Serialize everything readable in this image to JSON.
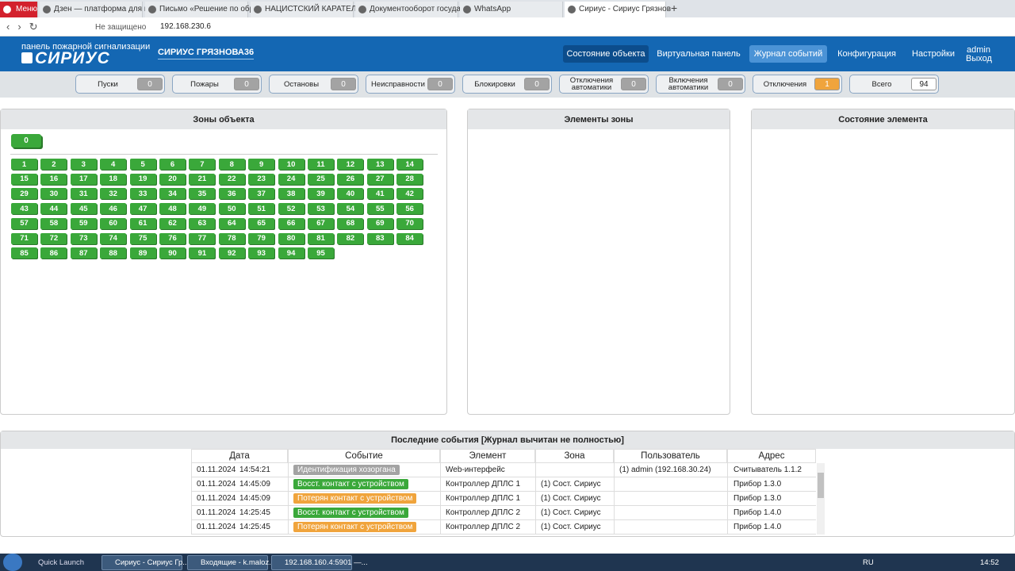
{
  "browser": {
    "tabs": [
      "Меню",
      "Дзен — платформа для п",
      "Письмо «Решение по обр",
      "НАЦИСТСКИЙ КАРАТЕЛЬ",
      "Документооборот государ",
      "WhatsApp",
      "Сириус - Сириус Грязнов"
    ],
    "active_tab": 6,
    "security": "Не защищено",
    "address": "192.168.230.6"
  },
  "header": {
    "subtitle": "панель пожарной сигнализации",
    "logo": "СИРИУС",
    "object": "СИРИУС ГРЯЗНОВА36",
    "nav": [
      "Состояние объекта",
      "Виртуальная панель",
      "Журнал событий",
      "Конфигурация",
      "Настройки"
    ],
    "nav_active": 0,
    "nav_hover": 2,
    "user": "admin",
    "logout": "Выход"
  },
  "counters": [
    {
      "label": "Пуски",
      "value": 0,
      "color": "#a3a3a3"
    },
    {
      "label": "Пожары",
      "value": 0,
      "color": "#a3a3a3"
    },
    {
      "label": "Остановы",
      "value": 0,
      "color": "#a3a3a3"
    },
    {
      "label": "Неисправности",
      "value": 0,
      "color": "#a3a3a3"
    },
    {
      "label": "Блокировки",
      "value": 0,
      "color": "#a3a3a3"
    },
    {
      "label": "Отключения автоматики",
      "value": 0,
      "color": "#a3a3a3"
    },
    {
      "label": "Включения автоматики",
      "value": 0,
      "color": "#a3a3a3"
    },
    {
      "label": "Отключения",
      "value": 1,
      "color": "#f0a43c"
    },
    {
      "label": "Всего",
      "value": 94,
      "color": "#ffffff"
    }
  ],
  "zones": {
    "title": "Зоны объекта",
    "group": "0",
    "items": [
      1,
      2,
      3,
      4,
      5,
      6,
      7,
      8,
      9,
      10,
      11,
      12,
      13,
      14,
      15,
      16,
      17,
      18,
      19,
      20,
      21,
      22,
      23,
      24,
      25,
      26,
      27,
      28,
      29,
      30,
      31,
      32,
      33,
      34,
      35,
      36,
      37,
      38,
      39,
      40,
      41,
      42,
      43,
      44,
      45,
      46,
      47,
      48,
      49,
      50,
      51,
      52,
      53,
      54,
      55,
      56,
      57,
      58,
      59,
      60,
      61,
      62,
      63,
      64,
      65,
      66,
      67,
      68,
      69,
      70,
      71,
      72,
      73,
      74,
      75,
      76,
      77,
      78,
      79,
      80,
      81,
      82,
      83,
      84,
      85,
      86,
      87,
      88,
      89,
      90,
      91,
      92,
      93,
      94,
      95
    ]
  },
  "elements": {
    "title": "Элементы зоны"
  },
  "state": {
    "title": "Состояние элемента"
  },
  "events": {
    "title": "Последние события [Журнал вычитан не полностью]",
    "columns": [
      "Дата",
      "Событие",
      "Элемент",
      "Зона",
      "Пользователь",
      "Адрес"
    ],
    "rows": [
      {
        "date": "01.11.2024",
        "time": "14:54:21",
        "event": "Идентификация хозоргана",
        "color": "#a3a3a3",
        "element": "Web-интерфейс",
        "zone": "",
        "user": "(1) admin (192.168.30.24)",
        "address": "Считыватель 1.1.2"
      },
      {
        "date": "01.11.2024",
        "time": "14:45:09",
        "event": "Восст. контакт с устройством",
        "color": "#3aa83a",
        "element": "Контроллер ДПЛС 1",
        "zone": "(1) Сост. Сириус",
        "user": "",
        "address": "Прибор 1.3.0"
      },
      {
        "date": "01.11.2024",
        "time": "14:45:09",
        "event": "Потерян контакт с устройством",
        "color": "#f0a43c",
        "element": "Контроллер ДПЛС 1",
        "zone": "(1) Сост. Сириус",
        "user": "",
        "address": "Прибор 1.3.0"
      },
      {
        "date": "01.11.2024",
        "time": "14:25:45",
        "event": "Восст. контакт с устройством",
        "color": "#3aa83a",
        "element": "Контроллер ДПЛС 2",
        "zone": "(1) Сост. Сириус",
        "user": "",
        "address": "Прибор 1.4.0"
      },
      {
        "date": "01.11.2024",
        "time": "14:25:45",
        "event": "Потерян контакт с устройством",
        "color": "#f0a43c",
        "element": "Контроллер ДПЛС 2",
        "zone": "(1) Сост. Сириус",
        "user": "",
        "address": "Прибор 1.4.0"
      }
    ]
  },
  "taskbar": {
    "quick_launch": "Quick Launch",
    "tasks": [
      "Сириус - Сириус Гр...",
      "Входящие - k.maloz...",
      "192.168.160.4:5901 —..."
    ],
    "lang": "RU",
    "time": "14:52"
  }
}
